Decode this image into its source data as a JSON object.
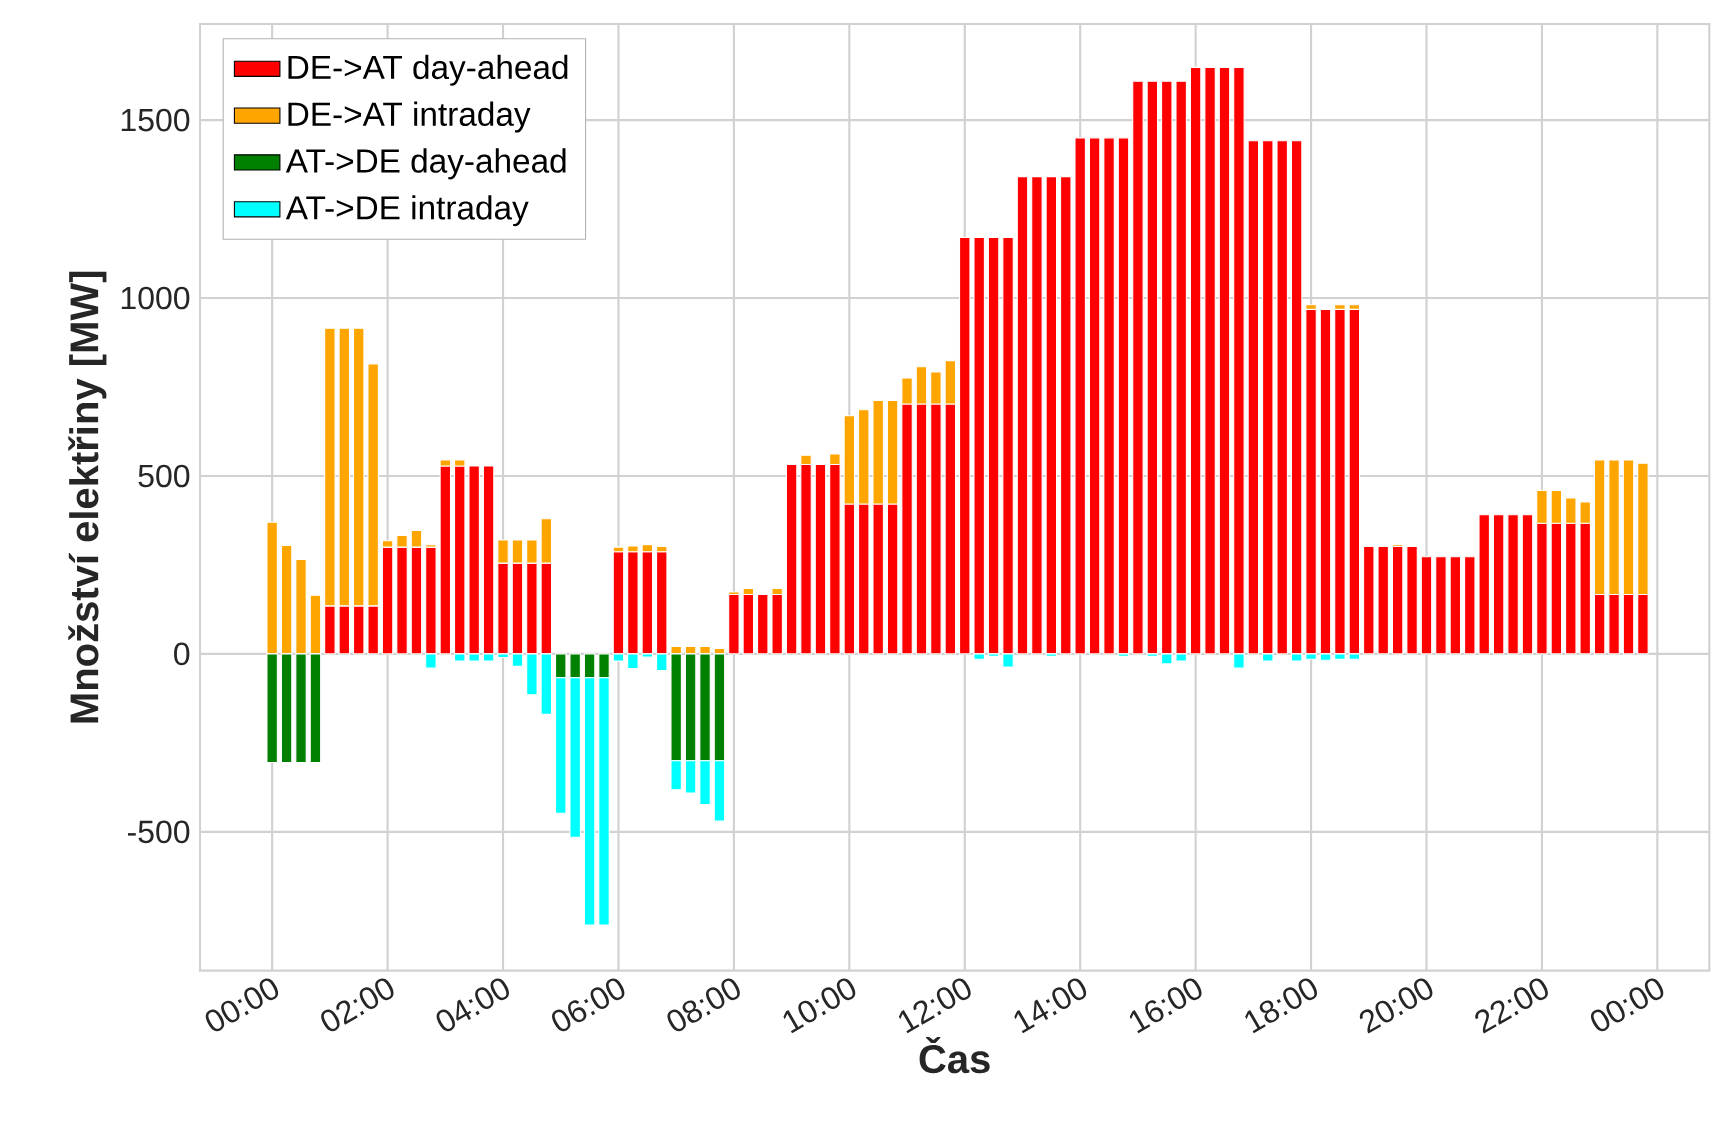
{
  "chart_data": {
    "type": "bar",
    "stacked": true,
    "xlabel": "Čas",
    "ylabel": "Množství elektřiny [MW]",
    "x": [
      0,
      0.25,
      0.5,
      0.75,
      1,
      1.25,
      1.5,
      1.75,
      2,
      2.25,
      2.5,
      2.75,
      3,
      3.25,
      3.5,
      3.75,
      4,
      4.25,
      4.5,
      4.75,
      5,
      5.25,
      5.5,
      5.75,
      6,
      6.25,
      6.5,
      6.75,
      7,
      7.25,
      7.5,
      7.75,
      8,
      8.25,
      8.5,
      8.75,
      9,
      9.25,
      9.5,
      9.75,
      10,
      10.25,
      10.5,
      10.75,
      11,
      11.25,
      11.5,
      11.75,
      12,
      12.25,
      12.5,
      12.75,
      13,
      13.25,
      13.5,
      13.75,
      14,
      14.25,
      14.5,
      14.75,
      15,
      15.25,
      15.5,
      15.75,
      16,
      16.25,
      16.5,
      16.75,
      17,
      17.25,
      17.5,
      17.75,
      18,
      18.25,
      18.5,
      18.75,
      19,
      19.25,
      19.5,
      19.75,
      20,
      20.25,
      20.5,
      20.75,
      21,
      21.25,
      21.5,
      21.75,
      22,
      22.25,
      22.5,
      22.75,
      23,
      23.25,
      23.5,
      23.75
    ],
    "series": [
      {
        "name": "DE->AT day-ahead",
        "color": "#ff0000",
        "values": [
          0,
          0,
          0,
          0,
          135,
          135,
          135,
          135,
          300,
          300,
          300,
          300,
          528,
          528,
          528,
          528,
          255,
          255,
          255,
          255,
          0,
          0,
          0,
          0,
          287,
          287,
          287,
          287,
          0,
          0,
          0,
          0,
          167,
          167,
          167,
          167,
          532,
          532,
          532,
          532,
          421,
          421,
          421,
          421,
          702,
          702,
          702,
          702,
          1170,
          1170,
          1170,
          1170,
          1341,
          1341,
          1341,
          1341,
          1450,
          1450,
          1450,
          1450,
          1609,
          1609,
          1609,
          1609,
          1648,
          1648,
          1648,
          1648,
          1442,
          1442,
          1442,
          1442,
          968,
          968,
          968,
          968,
          302,
          302,
          302,
          302,
          273,
          273,
          273,
          273,
          391,
          391,
          391,
          391,
          367,
          367,
          367,
          367,
          167,
          167,
          167,
          167
        ]
      },
      {
        "name": "DE->AT intraday",
        "color": "#ffa500",
        "values": [
          370,
          305,
          265,
          165,
          780,
          780,
          780,
          680,
          18,
          33,
          47,
          7,
          17,
          17,
          0,
          0,
          65,
          65,
          65,
          125,
          0,
          0,
          0,
          0,
          13,
          16,
          20,
          15,
          21,
          21,
          21,
          15,
          7,
          17,
          0,
          17,
          0,
          26,
          0,
          30,
          248,
          265,
          291,
          291,
          73,
          105,
          90,
          122,
          0,
          0,
          0,
          0,
          0,
          0,
          0,
          0,
          0,
          0,
          0,
          0,
          0,
          0,
          0,
          0,
          0,
          0,
          0,
          0,
          0,
          0,
          0,
          0,
          13,
          0,
          13,
          13,
          0,
          0,
          5,
          0,
          0,
          0,
          0,
          0,
          0,
          0,
          0,
          0,
          92,
          92,
          71,
          60,
          378,
          378,
          378,
          369
        ]
      },
      {
        "name": "AT->DE day-ahead",
        "color": "#008000",
        "values": [
          -305,
          -305,
          -305,
          -305,
          0,
          0,
          0,
          0,
          0,
          0,
          0,
          0,
          0,
          0,
          0,
          0,
          0,
          0,
          0,
          0,
          -67,
          -67,
          -67,
          -67,
          0,
          0,
          0,
          0,
          -300,
          -300,
          -300,
          -300,
          0,
          0,
          0,
          0,
          0,
          0,
          0,
          0,
          0,
          0,
          0,
          0,
          0,
          0,
          0,
          0,
          0,
          0,
          0,
          0,
          0,
          0,
          0,
          0,
          0,
          0,
          0,
          0,
          0,
          0,
          0,
          0,
          0,
          0,
          0,
          0,
          0,
          0,
          0,
          0,
          0,
          0,
          0,
          0,
          0,
          0,
          0,
          0,
          0,
          0,
          0,
          0,
          0,
          0,
          0,
          0,
          0,
          0,
          0,
          0,
          0,
          0,
          0,
          0
        ]
      },
      {
        "name": "AT->DE intraday",
        "color": "#00ffff",
        "values": [
          0,
          0,
          0,
          0,
          0,
          0,
          0,
          0,
          null,
          0,
          0,
          -40,
          0,
          -20,
          -20,
          -20,
          -10,
          -35,
          -115,
          -170,
          -381,
          -448,
          -695,
          -695,
          -20,
          -41,
          -9,
          -47,
          -82,
          -91,
          -123,
          -170,
          0,
          0,
          0,
          0,
          0,
          0,
          0,
          0,
          0,
          0,
          0,
          0,
          0,
          0,
          0,
          0,
          0,
          -15,
          -7,
          -37,
          0,
          0,
          -7,
          0,
          0,
          0,
          0,
          -7,
          0,
          -7,
          -28,
          -20,
          0,
          0,
          0,
          -40,
          0,
          -20,
          0,
          -20,
          -15,
          -18,
          -15,
          -15,
          0,
          0,
          0,
          0,
          0,
          0,
          0,
          0,
          0,
          0,
          0,
          0,
          0,
          0,
          0,
          0,
          0,
          0,
          0,
          0
        ]
      }
    ],
    "xlim": [
      -1.25,
      24.9
    ],
    "ylim": [
      -890,
      1770
    ],
    "xticks": [
      {
        "value": 0,
        "label": "00:00"
      },
      {
        "value": 2,
        "label": "02:00"
      },
      {
        "value": 4,
        "label": "04:00"
      },
      {
        "value": 6,
        "label": "06:00"
      },
      {
        "value": 8,
        "label": "08:00"
      },
      {
        "value": 10,
        "label": "10:00"
      },
      {
        "value": 12,
        "label": "12:00"
      },
      {
        "value": 14,
        "label": "14:00"
      },
      {
        "value": 16,
        "label": "16:00"
      },
      {
        "value": 18,
        "label": "18:00"
      },
      {
        "value": 20,
        "label": "20:00"
      },
      {
        "value": 22,
        "label": "22:00"
      },
      {
        "value": 24,
        "label": "00:00"
      }
    ],
    "yticks": [
      -500,
      0,
      500,
      1000,
      1500
    ],
    "grid": true,
    "legend": "top left"
  }
}
